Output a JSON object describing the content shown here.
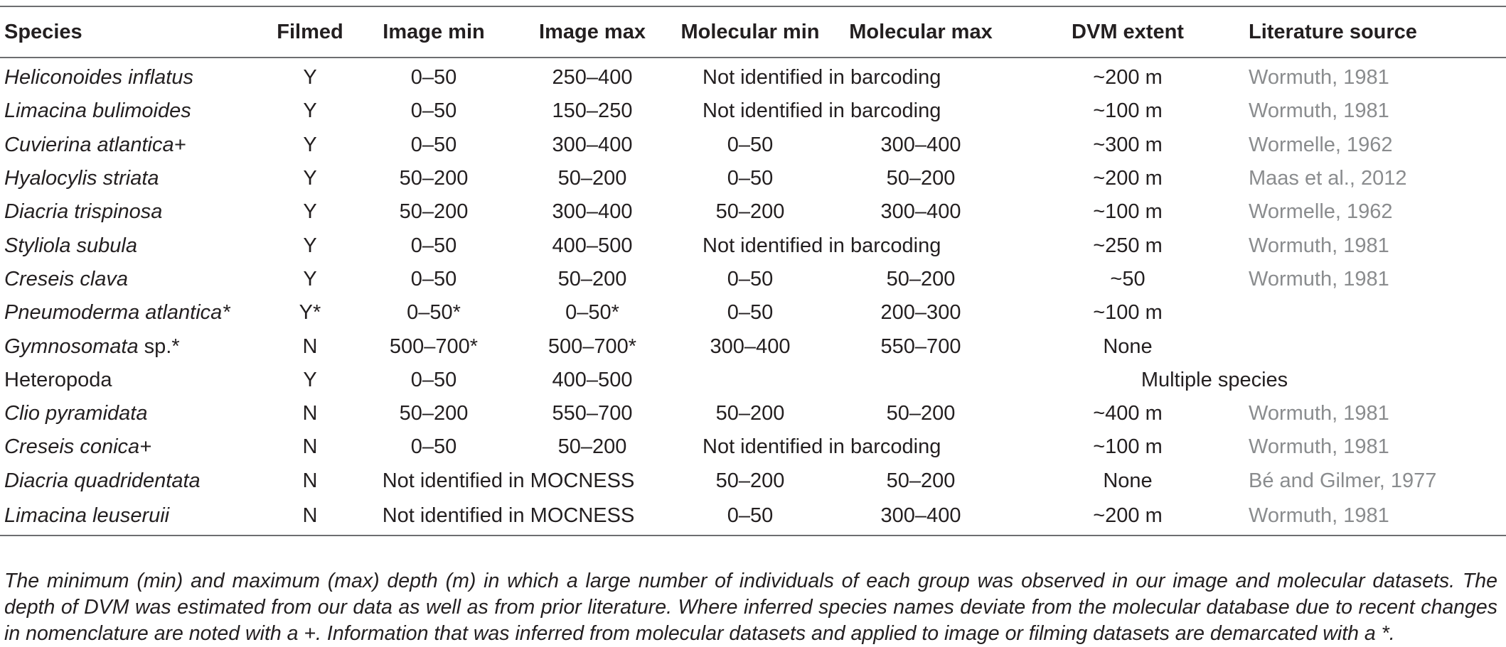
{
  "table": {
    "headers": [
      "Species",
      "Filmed",
      "Image min",
      "Image max",
      "Molecular min",
      "Molecular max",
      "DVM extent",
      "Literature source"
    ],
    "rows": [
      {
        "species": "Heliconoides inflatus",
        "species_suffix": "",
        "italic": true,
        "filmed": "Y",
        "image_min": "0–50",
        "image_max": "250–400",
        "molecular_note": "Not identified in barcoding",
        "dvm": "~200 m",
        "source": "Wormuth, 1981"
      },
      {
        "species": "Limacina bulimoides",
        "species_suffix": "",
        "italic": true,
        "filmed": "Y",
        "image_min": "0–50",
        "image_max": "150–250",
        "molecular_note": "Not identified in barcoding",
        "dvm": "~100 m",
        "source": "Wormuth, 1981"
      },
      {
        "species": "Cuvierina atlantica+",
        "species_suffix": "",
        "italic": true,
        "filmed": "Y",
        "image_min": "0–50",
        "image_max": "300–400",
        "molecular_min": "0–50",
        "molecular_max": "300–400",
        "dvm": "~300 m",
        "source": "Wormelle, 1962"
      },
      {
        "species": "Hyalocylis striata",
        "species_suffix": "",
        "italic": true,
        "filmed": "Y",
        "image_min": "50–200",
        "image_max": "50–200",
        "molecular_min": "0–50",
        "molecular_max": "50–200",
        "dvm": "~200 m",
        "source": "Maas et al., 2012"
      },
      {
        "species": "Diacria trispinosa",
        "species_suffix": "",
        "italic": true,
        "filmed": "Y",
        "image_min": "50–200",
        "image_max": "300–400",
        "molecular_min": "50–200",
        "molecular_max": "300–400",
        "dvm": "~100 m",
        "source": "Wormelle, 1962"
      },
      {
        "species": "Styliola subula",
        "species_suffix": "",
        "italic": true,
        "filmed": "Y",
        "image_min": "0–50",
        "image_max": "400–500",
        "molecular_note": "Not identified in barcoding",
        "dvm": "~250 m",
        "source": "Wormuth, 1981"
      },
      {
        "species": "Creseis clava",
        "species_suffix": "",
        "italic": true,
        "filmed": "Y",
        "image_min": "0–50",
        "image_max": "50–200",
        "molecular_min": "0–50",
        "molecular_max": "50–200",
        "dvm": "~50",
        "source": "Wormuth, 1981"
      },
      {
        "species": "Pneumoderma atlantica*",
        "species_suffix": "",
        "italic": true,
        "filmed": "Y*",
        "image_min": "0–50*",
        "image_max": "0–50*",
        "molecular_min": "0–50",
        "molecular_max": "200–300",
        "dvm": "~100 m",
        "source": ""
      },
      {
        "species": "Gymnosomata",
        "species_suffix": " sp.*",
        "italic": true,
        "filmed": "N",
        "image_min": "500–700*",
        "image_max": "500–700*",
        "molecular_min": "300–400",
        "molecular_max": "550–700",
        "dvm": "None",
        "source": ""
      },
      {
        "species": "Heteropoda",
        "species_suffix": "",
        "italic": false,
        "filmed": "Y",
        "image_min": "0–50",
        "image_max": "400–500",
        "molecular_min": "",
        "molecular_max": "",
        "dvm_source_note": "Multiple species"
      },
      {
        "species": "Clio pyramidata",
        "species_suffix": "",
        "italic": true,
        "filmed": "N",
        "image_min": "50–200",
        "image_max": "550–700",
        "molecular_min": "50–200",
        "molecular_max": "50–200",
        "dvm": "~400 m",
        "source": "Wormuth, 1981"
      },
      {
        "species": "Creseis conica+",
        "species_suffix": "",
        "italic": true,
        "filmed": "N",
        "image_min": "0–50",
        "image_max": "50–200",
        "molecular_note": "Not identified in barcoding",
        "dvm": "~100 m",
        "source": "Wormuth, 1981"
      },
      {
        "species": "Diacria quadridentata",
        "species_suffix": "",
        "italic": true,
        "filmed": "N",
        "image_note": "Not identified in MOCNESS",
        "molecular_min": "50–200",
        "molecular_max": "50–200",
        "dvm": "None",
        "source": "Bé and Gilmer, 1977"
      },
      {
        "species": "Limacina leuseruii",
        "species_suffix": "",
        "italic": true,
        "filmed": "N",
        "image_note": "Not identified in MOCNESS",
        "molecular_min": "0–50",
        "molecular_max": "300–400",
        "dvm": "~200 m",
        "source": "Wormuth, 1981"
      }
    ]
  },
  "caption": "The minimum (min) and maximum (max) depth (m) in which a large number of individuals of each group was observed in our image and molecular datasets. The depth of DVM was estimated from our data as well as from prior literature. Where inferred species names deviate from the molecular database due to recent changes in nomenclature are noted with a +. Information that was inferred from molecular datasets and applied to image or filming datasets are demarcated with a *."
}
